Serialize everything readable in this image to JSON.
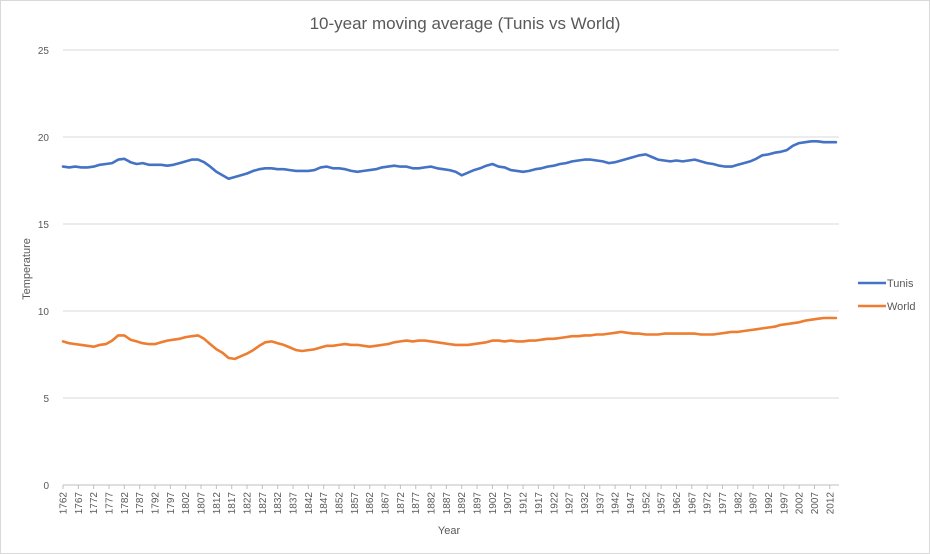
{
  "chart_data": {
    "type": "line",
    "title": "10-year moving average (Tunis vs World)",
    "xlabel": "Year",
    "ylabel": "Temperature",
    "ylim": [
      0,
      25
    ],
    "yticks": [
      0,
      5,
      10,
      15,
      20,
      25
    ],
    "xlim": [
      1762,
      2015
    ],
    "xticks": [
      1762,
      1767,
      1772,
      1777,
      1782,
      1787,
      1792,
      1797,
      1802,
      1807,
      1812,
      1817,
      1822,
      1827,
      1832,
      1837,
      1842,
      1847,
      1852,
      1857,
      1862,
      1867,
      1872,
      1877,
      1882,
      1887,
      1892,
      1897,
      1902,
      1907,
      1912,
      1917,
      1922,
      1927,
      1932,
      1937,
      1942,
      1947,
      1952,
      1957,
      1962,
      1967,
      1972,
      1977,
      1982,
      1987,
      1992,
      1997,
      2002,
      2007,
      2012
    ],
    "grid": true,
    "legend": "right",
    "series": [
      {
        "name": "Tunis",
        "color": "#4472c4",
        "x": [
          1762,
          1764,
          1766,
          1768,
          1770,
          1772,
          1774,
          1776,
          1778,
          1780,
          1782,
          1784,
          1786,
          1788,
          1790,
          1792,
          1794,
          1796,
          1798,
          1800,
          1802,
          1804,
          1806,
          1808,
          1810,
          1812,
          1814,
          1816,
          1818,
          1820,
          1822,
          1824,
          1826,
          1828,
          1830,
          1832,
          1834,
          1836,
          1838,
          1840,
          1842,
          1844,
          1846,
          1848,
          1850,
          1852,
          1854,
          1856,
          1858,
          1860,
          1862,
          1864,
          1866,
          1868,
          1870,
          1872,
          1874,
          1876,
          1878,
          1880,
          1882,
          1884,
          1886,
          1888,
          1890,
          1892,
          1894,
          1896,
          1898,
          1900,
          1902,
          1904,
          1906,
          1908,
          1910,
          1912,
          1914,
          1916,
          1918,
          1920,
          1922,
          1924,
          1926,
          1928,
          1930,
          1932,
          1934,
          1936,
          1938,
          1940,
          1942,
          1944,
          1946,
          1948,
          1950,
          1952,
          1954,
          1956,
          1958,
          1960,
          1962,
          1964,
          1966,
          1968,
          1970,
          1972,
          1974,
          1976,
          1978,
          1980,
          1982,
          1984,
          1986,
          1988,
          1990,
          1992,
          1994,
          1996,
          1998,
          2000,
          2002,
          2004,
          2006,
          2008,
          2010,
          2012,
          2014
        ],
        "values": [
          18.3,
          18.25,
          18.3,
          18.25,
          18.25,
          18.3,
          18.4,
          18.45,
          18.5,
          18.7,
          18.75,
          18.55,
          18.45,
          18.5,
          18.4,
          18.4,
          18.4,
          18.35,
          18.4,
          18.5,
          18.6,
          18.7,
          18.7,
          18.55,
          18.3,
          18.0,
          17.8,
          17.6,
          17.7,
          17.8,
          17.9,
          18.05,
          18.15,
          18.2,
          18.2,
          18.15,
          18.15,
          18.1,
          18.05,
          18.05,
          18.05,
          18.1,
          18.25,
          18.3,
          18.2,
          18.2,
          18.15,
          18.05,
          18.0,
          18.05,
          18.1,
          18.15,
          18.25,
          18.3,
          18.35,
          18.3,
          18.3,
          18.2,
          18.2,
          18.25,
          18.3,
          18.2,
          18.15,
          18.1,
          18.0,
          17.8,
          17.95,
          18.1,
          18.2,
          18.35,
          18.45,
          18.3,
          18.25,
          18.1,
          18.05,
          18.0,
          18.05,
          18.15,
          18.2,
          18.3,
          18.35,
          18.45,
          18.5,
          18.6,
          18.65,
          18.7,
          18.7,
          18.65,
          18.6,
          18.5,
          18.55,
          18.65,
          18.75,
          18.85,
          18.95,
          19.0,
          18.85,
          18.7,
          18.65,
          18.6,
          18.65,
          18.6,
          18.65,
          18.7,
          18.6,
          18.5,
          18.45,
          18.35,
          18.3,
          18.3,
          18.4,
          18.5,
          18.6,
          18.75,
          18.95,
          19.0,
          19.1,
          19.15,
          19.25,
          19.5,
          19.65,
          19.7,
          19.75,
          19.75,
          19.7,
          19.7,
          19.7
        ]
      },
      {
        "name": "World",
        "color": "#ed7d31",
        "x": [
          1762,
          1764,
          1766,
          1768,
          1770,
          1772,
          1774,
          1776,
          1778,
          1780,
          1782,
          1784,
          1786,
          1788,
          1790,
          1792,
          1794,
          1796,
          1798,
          1800,
          1802,
          1804,
          1806,
          1808,
          1810,
          1812,
          1814,
          1816,
          1818,
          1820,
          1822,
          1824,
          1826,
          1828,
          1830,
          1832,
          1834,
          1836,
          1838,
          1840,
          1842,
          1844,
          1846,
          1848,
          1850,
          1852,
          1854,
          1856,
          1858,
          1860,
          1862,
          1864,
          1866,
          1868,
          1870,
          1872,
          1874,
          1876,
          1878,
          1880,
          1882,
          1884,
          1886,
          1888,
          1890,
          1892,
          1894,
          1896,
          1898,
          1900,
          1902,
          1904,
          1906,
          1908,
          1910,
          1912,
          1914,
          1916,
          1918,
          1920,
          1922,
          1924,
          1926,
          1928,
          1930,
          1932,
          1934,
          1936,
          1938,
          1940,
          1942,
          1944,
          1946,
          1948,
          1950,
          1952,
          1954,
          1956,
          1958,
          1960,
          1962,
          1964,
          1966,
          1968,
          1970,
          1972,
          1974,
          1976,
          1978,
          1980,
          1982,
          1984,
          1986,
          1988,
          1990,
          1992,
          1994,
          1996,
          1998,
          2000,
          2002,
          2004,
          2006,
          2008,
          2010,
          2012,
          2014
        ],
        "values": [
          8.25,
          8.15,
          8.1,
          8.05,
          8.0,
          7.95,
          8.05,
          8.1,
          8.3,
          8.6,
          8.6,
          8.35,
          8.25,
          8.15,
          8.1,
          8.1,
          8.2,
          8.3,
          8.35,
          8.4,
          8.5,
          8.55,
          8.6,
          8.4,
          8.1,
          7.8,
          7.6,
          7.3,
          7.25,
          7.4,
          7.55,
          7.75,
          8.0,
          8.2,
          8.25,
          8.15,
          8.05,
          7.9,
          7.75,
          7.7,
          7.75,
          7.8,
          7.9,
          8.0,
          8.0,
          8.05,
          8.1,
          8.05,
          8.05,
          8.0,
          7.95,
          8.0,
          8.05,
          8.1,
          8.2,
          8.25,
          8.3,
          8.25,
          8.3,
          8.3,
          8.25,
          8.2,
          8.15,
          8.1,
          8.05,
          8.05,
          8.05,
          8.1,
          8.15,
          8.2,
          8.3,
          8.3,
          8.25,
          8.3,
          8.25,
          8.25,
          8.3,
          8.3,
          8.35,
          8.4,
          8.4,
          8.45,
          8.5,
          8.55,
          8.55,
          8.6,
          8.6,
          8.65,
          8.65,
          8.7,
          8.75,
          8.8,
          8.75,
          8.7,
          8.7,
          8.65,
          8.65,
          8.65,
          8.7,
          8.7,
          8.7,
          8.7,
          8.7,
          8.7,
          8.65,
          8.65,
          8.65,
          8.7,
          8.75,
          8.8,
          8.8,
          8.85,
          8.9,
          8.95,
          9.0,
          9.05,
          9.1,
          9.2,
          9.25,
          9.3,
          9.35,
          9.45,
          9.5,
          9.55,
          9.6,
          9.6,
          9.6
        ]
      }
    ]
  }
}
